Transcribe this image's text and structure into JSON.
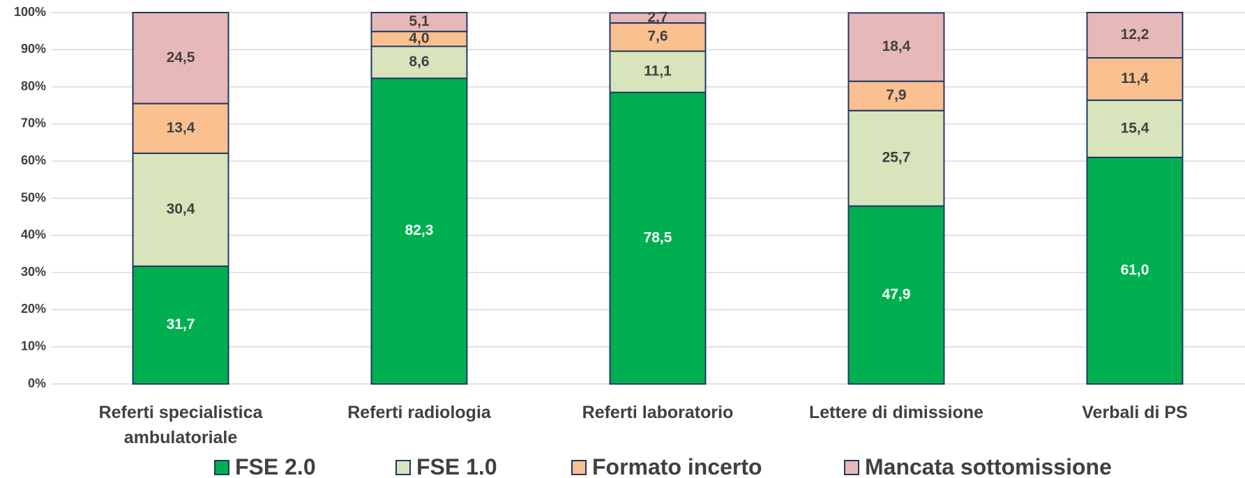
{
  "chart_data": {
    "type": "stacked_bar",
    "categories": [
      "Referti specialistica ambulatoriale",
      "Referti radiologia",
      "Referti laboratorio",
      "Lettere di dimissione",
      "Verbali di PS"
    ],
    "series": [
      {
        "name": "FSE 2.0",
        "color": "#00b050",
        "values": [
          31.7,
          82.3,
          78.5,
          47.9,
          61.0
        ],
        "value_labels": [
          "31,7",
          "82,3",
          "78,5",
          "47,9",
          "61,0"
        ]
      },
      {
        "name": "FSE 1.0",
        "color": "#d8e4bc",
        "values": [
          30.4,
          8.6,
          11.1,
          25.7,
          15.4
        ],
        "value_labels": [
          "30,4",
          "8,6",
          "11,1",
          "25,7",
          "15,4"
        ]
      },
      {
        "name": "Formato incerto",
        "color": "#fac090",
        "values": [
          13.4,
          4.0,
          7.6,
          7.9,
          11.4
        ],
        "value_labels": [
          "13,4",
          "4,0",
          "7,6",
          "7,9",
          "11,4"
        ]
      },
      {
        "name": "Mancata sottomissione",
        "color": "#e6b9b8",
        "values": [
          24.5,
          5.1,
          2.7,
          18.4,
          12.2
        ],
        "value_labels": [
          "24,5",
          "5,1",
          "2,7",
          "18,4",
          "12,2"
        ]
      }
    ],
    "ylim": [
      0,
      100
    ],
    "yticks": [
      {
        "value": 0,
        "label": "0%"
      },
      {
        "value": 10,
        "label": "10%"
      },
      {
        "value": 20,
        "label": "20%"
      },
      {
        "value": 30,
        "label": "30%"
      },
      {
        "value": 40,
        "label": "40%"
      },
      {
        "value": 50,
        "label": "50%"
      },
      {
        "value": 60,
        "label": "60%"
      },
      {
        "value": 70,
        "label": "70%"
      },
      {
        "value": 80,
        "label": "80%"
      },
      {
        "value": 90,
        "label": "90%"
      },
      {
        "value": 100,
        "label": "100%"
      }
    ],
    "grid": true,
    "legend": "bottom"
  }
}
